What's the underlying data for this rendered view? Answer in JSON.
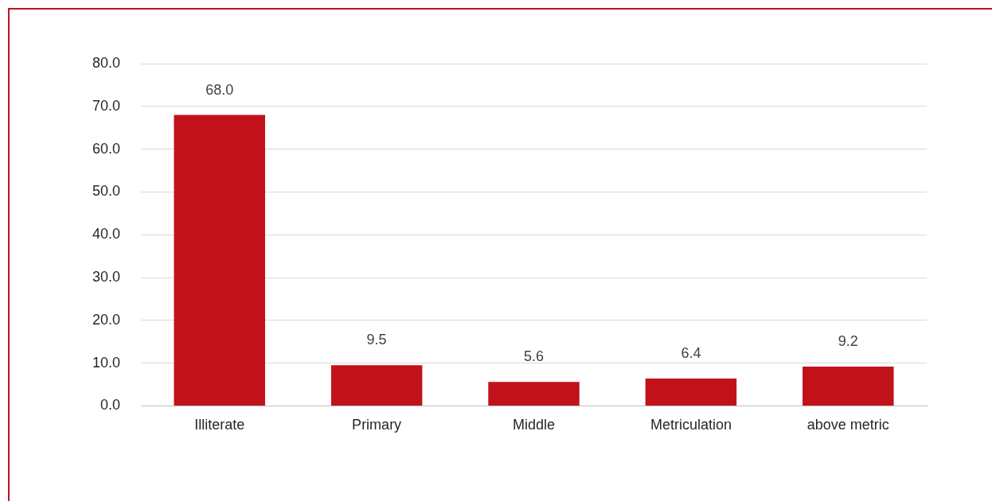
{
  "chart_data": {
    "type": "bar",
    "categories": [
      "Illiterate",
      "Primary",
      "Middle",
      "Metriculation",
      "above metric"
    ],
    "values": [
      68.0,
      9.5,
      5.6,
      6.4,
      9.2
    ],
    "color": "#c1121c",
    "value_labels": [
      "68.0",
      "9.5",
      "5.6",
      "6.4",
      "9.2"
    ],
    "ylim": [
      0,
      80
    ],
    "yticks": [
      {
        "value": 0,
        "label": "0.0"
      },
      {
        "value": 10,
        "label": "10.0"
      },
      {
        "value": 20,
        "label": "20.0"
      },
      {
        "value": 30,
        "label": "30.0"
      },
      {
        "value": 40,
        "label": "40.0"
      },
      {
        "value": 50,
        "label": "50.0"
      },
      {
        "value": 60,
        "label": "60.0"
      },
      {
        "value": 70,
        "label": "70.0"
      },
      {
        "value": 80,
        "label": "80.0"
      }
    ],
    "grid": "y",
    "legend": false
  }
}
